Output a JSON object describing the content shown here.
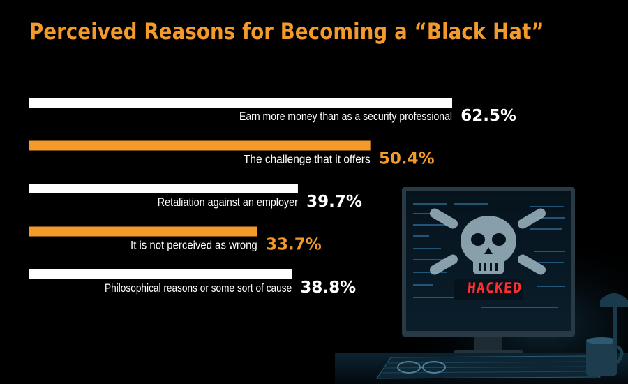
{
  "title": "Perceived Reasons for Becoming a “Black Hat”",
  "colors": {
    "background": "#000000",
    "accent": "#f39a2b",
    "white": "#ffffff"
  },
  "monitor_text": "HACKED",
  "chart_data": {
    "type": "bar",
    "orientation": "horizontal",
    "title": "Perceived Reasons for Becoming a “Black Hat”",
    "unit": "%",
    "categories": [
      "Earn more money than as a security professional",
      "The challenge that it offers",
      "Retaliation against an employer",
      "It is not perceived as wrong",
      "Philosophical reasons or some sort of cause"
    ],
    "values": [
      62.5,
      50.4,
      39.7,
      33.7,
      38.8
    ],
    "value_labels": [
      "62.5%",
      "50.4%",
      "39.7%",
      "33.7%",
      "38.8%"
    ],
    "bar_colors": [
      "#ffffff",
      "#f39a2b",
      "#ffffff",
      "#f39a2b",
      "#ffffff"
    ],
    "value_colors": [
      "#ffffff",
      "#f39a2b",
      "#ffffff",
      "#f39a2b",
      "#ffffff"
    ],
    "xlim": [
      0,
      62.5
    ],
    "grid": false,
    "legend": "none"
  }
}
